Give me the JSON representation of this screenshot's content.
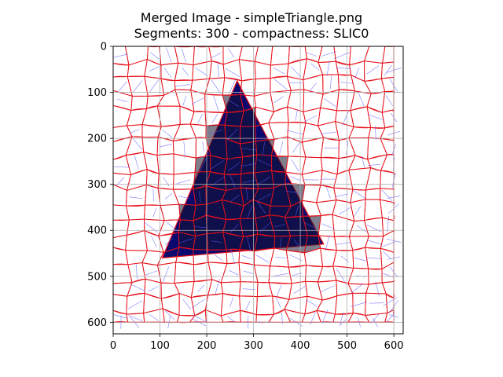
{
  "figure": {
    "title_line1": "Merged Image - simpleTriangle.png",
    "title_line2": "Segments: 300 - compactness: SLIC0"
  },
  "colors": {
    "segment_boundary": "#e8101a",
    "merge_line": "#5b5bff",
    "triangle_fill": "#0a0a6e",
    "triangle_dark": "#141430",
    "grid": "#b0b0b0",
    "background": "#ffffff"
  },
  "chart_data": {
    "type": "heatmap",
    "title": "Merged Image - simpleTriangle.png\nSegments: 300 - compactness: SLIC0",
    "xlabel": "",
    "ylabel": "",
    "xlim": [
      0,
      620
    ],
    "ylim": [
      625,
      0
    ],
    "x_ticks": [
      0,
      100,
      200,
      300,
      400,
      500,
      600
    ],
    "y_ticks": [
      0,
      100,
      200,
      300,
      400,
      500,
      600
    ],
    "x_tick_labels": [
      "0",
      "100",
      "200",
      "300",
      "400",
      "500",
      "600"
    ],
    "y_tick_labels": [
      "0",
      "100",
      "200",
      "300",
      "400",
      "500",
      "600"
    ],
    "grid": true,
    "image": {
      "width": 600,
      "height": 600,
      "shape_vertices": [
        [
          265,
          75
        ],
        [
          450,
          430
        ],
        [
          105,
          460
        ]
      ],
      "segments_requested": 300
    }
  }
}
